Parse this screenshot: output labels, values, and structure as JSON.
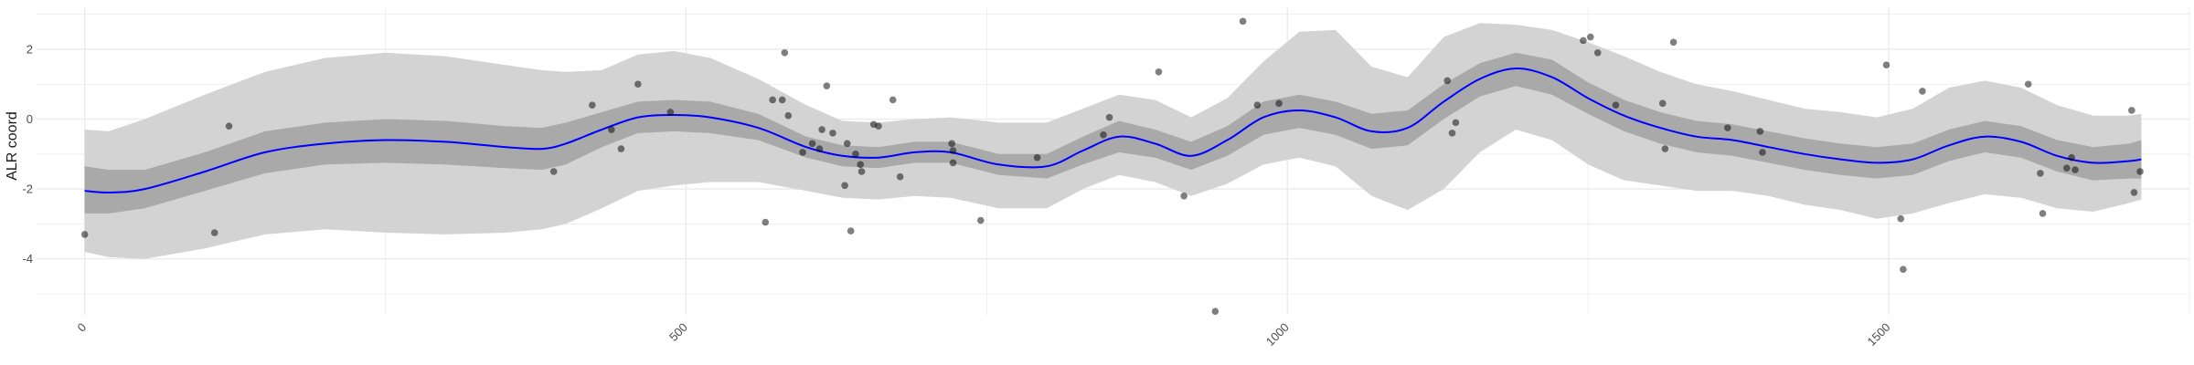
{
  "chart_data": {
    "type": "scatter",
    "title": "",
    "xlabel": "",
    "ylabel": "ALR coord",
    "xlim": [
      -40,
      1750
    ],
    "ylim": [
      -5.6,
      3.2
    ],
    "x_ticks": [
      0,
      500,
      1000,
      1500
    ],
    "x_ticks_minor": [
      250,
      750,
      1250,
      1750
    ],
    "y_ticks": [
      -4,
      -2,
      0,
      2
    ],
    "y_ticks_minor": [
      -5,
      -3,
      -1,
      1,
      3
    ],
    "grid": true,
    "colors": {
      "points": "#000000",
      "fit_line": "#0000ff",
      "outer_band": "#d3d3d3",
      "inner_band": "#a9a9a9",
      "grid": "#ebebeb"
    },
    "fit": {
      "x": [
        0,
        20,
        50,
        100,
        150,
        200,
        250,
        300,
        350,
        380,
        400,
        430,
        460,
        490,
        520,
        560,
        600,
        630,
        660,
        690,
        720,
        760,
        800,
        830,
        860,
        890,
        920,
        950,
        980,
        1010,
        1040,
        1070,
        1100,
        1130,
        1160,
        1190,
        1220,
        1250,
        1280,
        1310,
        1340,
        1370,
        1400,
        1430,
        1460,
        1490,
        1520,
        1550,
        1580,
        1610,
        1640,
        1670,
        1700,
        1710
      ],
      "mean": [
        -2.05,
        -2.1,
        -2.0,
        -1.5,
        -0.95,
        -0.7,
        -0.6,
        -0.65,
        -0.8,
        -0.85,
        -0.7,
        -0.3,
        0.05,
        0.12,
        0.05,
        -0.25,
        -0.8,
        -1.05,
        -1.1,
        -0.95,
        -0.95,
        -1.3,
        -1.35,
        -0.9,
        -0.5,
        -0.7,
        -1.05,
        -0.6,
        0.05,
        0.25,
        0.05,
        -0.35,
        -0.25,
        0.5,
        1.15,
        1.45,
        1.2,
        0.6,
        0.1,
        -0.25,
        -0.5,
        -0.6,
        -0.8,
        -1.0,
        -1.15,
        -1.25,
        -1.15,
        -0.75,
        -0.5,
        -0.65,
        -1.05,
        -1.25,
        -1.2,
        -1.15
      ],
      "inner_lower": [
        -2.7,
        -2.7,
        -2.55,
        -2.05,
        -1.55,
        -1.3,
        -1.25,
        -1.3,
        -1.4,
        -1.45,
        -1.3,
        -0.8,
        -0.4,
        -0.35,
        -0.4,
        -0.6,
        -1.1,
        -1.35,
        -1.4,
        -1.25,
        -1.25,
        -1.6,
        -1.7,
        -1.3,
        -0.95,
        -1.1,
        -1.45,
        -1.05,
        -0.45,
        -0.25,
        -0.45,
        -0.85,
        -0.75,
        0.0,
        0.65,
        0.95,
        0.7,
        0.15,
        -0.35,
        -0.7,
        -0.95,
        -1.05,
        -1.25,
        -1.45,
        -1.6,
        -1.7,
        -1.6,
        -1.2,
        -0.95,
        -1.1,
        -1.5,
        -1.75,
        -1.7,
        -1.7
      ],
      "inner_upper": [
        -1.35,
        -1.45,
        -1.45,
        -0.95,
        -0.35,
        -0.1,
        0.0,
        -0.05,
        -0.2,
        -0.25,
        -0.1,
        0.2,
        0.5,
        0.55,
        0.5,
        0.15,
        -0.5,
        -0.75,
        -0.8,
        -0.65,
        -0.65,
        -1.0,
        -1.0,
        -0.5,
        -0.05,
        -0.3,
        -0.65,
        -0.2,
        0.5,
        0.7,
        0.5,
        0.15,
        0.25,
        1.0,
        1.6,
        1.9,
        1.7,
        1.05,
        0.55,
        0.2,
        -0.05,
        -0.15,
        -0.35,
        -0.55,
        -0.7,
        -0.8,
        -0.7,
        -0.3,
        -0.05,
        -0.2,
        -0.6,
        -0.8,
        -0.7,
        -0.6
      ],
      "outer_lower": [
        -3.8,
        -3.95,
        -4.0,
        -3.7,
        -3.3,
        -3.15,
        -3.25,
        -3.3,
        -3.25,
        -3.15,
        -3.0,
        -2.55,
        -2.05,
        -1.9,
        -1.8,
        -1.8,
        -2.05,
        -2.25,
        -2.3,
        -2.2,
        -2.25,
        -2.55,
        -2.55,
        -2.0,
        -1.6,
        -1.8,
        -2.2,
        -1.85,
        -1.3,
        -1.1,
        -1.35,
        -2.2,
        -2.6,
        -2.0,
        -0.95,
        -0.3,
        -0.6,
        -1.3,
        -1.75,
        -1.9,
        -2.05,
        -2.05,
        -2.2,
        -2.45,
        -2.6,
        -2.85,
        -2.7,
        -2.4,
        -2.15,
        -2.25,
        -2.55,
        -2.65,
        -2.4,
        -2.3
      ],
      "outer_upper": [
        -0.3,
        -0.35,
        0.0,
        0.7,
        1.35,
        1.75,
        1.9,
        1.8,
        1.55,
        1.4,
        1.35,
        1.4,
        1.85,
        1.95,
        1.75,
        1.15,
        0.4,
        -0.05,
        -0.1,
        0.0,
        0.05,
        -0.1,
        -0.1,
        0.3,
        0.7,
        0.55,
        0.05,
        0.6,
        1.65,
        2.5,
        2.55,
        1.5,
        1.2,
        2.35,
        2.75,
        2.7,
        2.55,
        2.2,
        1.8,
        1.35,
        1.0,
        0.8,
        0.55,
        0.3,
        0.2,
        0.05,
        0.3,
        0.9,
        1.1,
        0.9,
        0.4,
        0.1,
        0.1,
        0.15
      ]
    },
    "points": [
      {
        "x": 0,
        "y": -3.3
      },
      {
        "x": 108,
        "y": -3.25
      },
      {
        "x": 120,
        "y": -0.2
      },
      {
        "x": 390,
        "y": -1.5
      },
      {
        "x": 422,
        "y": 0.4
      },
      {
        "x": 438,
        "y": -0.3
      },
      {
        "x": 446,
        "y": -0.85
      },
      {
        "x": 460,
        "y": 1.0
      },
      {
        "x": 487,
        "y": 0.2
      },
      {
        "x": 566,
        "y": -2.95
      },
      {
        "x": 572,
        "y": 0.55
      },
      {
        "x": 580,
        "y": 0.55
      },
      {
        "x": 582,
        "y": 1.9
      },
      {
        "x": 585,
        "y": 0.1
      },
      {
        "x": 597,
        "y": -0.95
      },
      {
        "x": 605,
        "y": -0.7
      },
      {
        "x": 611,
        "y": -0.85
      },
      {
        "x": 613,
        "y": -0.3
      },
      {
        "x": 617,
        "y": 0.95
      },
      {
        "x": 622,
        "y": -0.4
      },
      {
        "x": 632,
        "y": -1.9
      },
      {
        "x": 634,
        "y": -0.7
      },
      {
        "x": 637,
        "y": -3.2
      },
      {
        "x": 641,
        "y": -1.0
      },
      {
        "x": 645,
        "y": -1.3
      },
      {
        "x": 646,
        "y": -1.5
      },
      {
        "x": 656,
        "y": -0.15
      },
      {
        "x": 660,
        "y": -0.2
      },
      {
        "x": 672,
        "y": 0.55
      },
      {
        "x": 678,
        "y": -1.65
      },
      {
        "x": 721,
        "y": -0.7
      },
      {
        "x": 722,
        "y": -0.9
      },
      {
        "x": 722,
        "y": -1.25
      },
      {
        "x": 745,
        "y": -2.9
      },
      {
        "x": 792,
        "y": -1.1
      },
      {
        "x": 847,
        "y": -0.45
      },
      {
        "x": 852,
        "y": 0.05
      },
      {
        "x": 893,
        "y": 1.35
      },
      {
        "x": 914,
        "y": -2.2
      },
      {
        "x": 940,
        "y": -5.5
      },
      {
        "x": 963,
        "y": 2.8
      },
      {
        "x": 975,
        "y": 0.4
      },
      {
        "x": 993,
        "y": 0.45
      },
      {
        "x": 1133,
        "y": 1.1
      },
      {
        "x": 1137,
        "y": -0.4
      },
      {
        "x": 1140,
        "y": -0.1
      },
      {
        "x": 1246,
        "y": 2.25
      },
      {
        "x": 1252,
        "y": 2.35
      },
      {
        "x": 1258,
        "y": 1.9
      },
      {
        "x": 1273,
        "y": 0.4
      },
      {
        "x": 1312,
        "y": 0.45
      },
      {
        "x": 1314,
        "y": -0.85
      },
      {
        "x": 1321,
        "y": 2.2
      },
      {
        "x": 1366,
        "y": -0.25
      },
      {
        "x": 1393,
        "y": -0.35
      },
      {
        "x": 1395,
        "y": -0.95
      },
      {
        "x": 1498,
        "y": 1.55
      },
      {
        "x": 1510,
        "y": -2.85
      },
      {
        "x": 1512,
        "y": -4.3
      },
      {
        "x": 1528,
        "y": 0.8
      },
      {
        "x": 1616,
        "y": 1.0
      },
      {
        "x": 1626,
        "y": -1.55
      },
      {
        "x": 1628,
        "y": -2.7
      },
      {
        "x": 1648,
        "y": -1.4
      },
      {
        "x": 1652,
        "y": -1.1
      },
      {
        "x": 1655,
        "y": -1.45
      },
      {
        "x": 1702,
        "y": 0.25
      },
      {
        "x": 1704,
        "y": -2.1
      },
      {
        "x": 1709,
        "y": -1.5
      }
    ]
  }
}
